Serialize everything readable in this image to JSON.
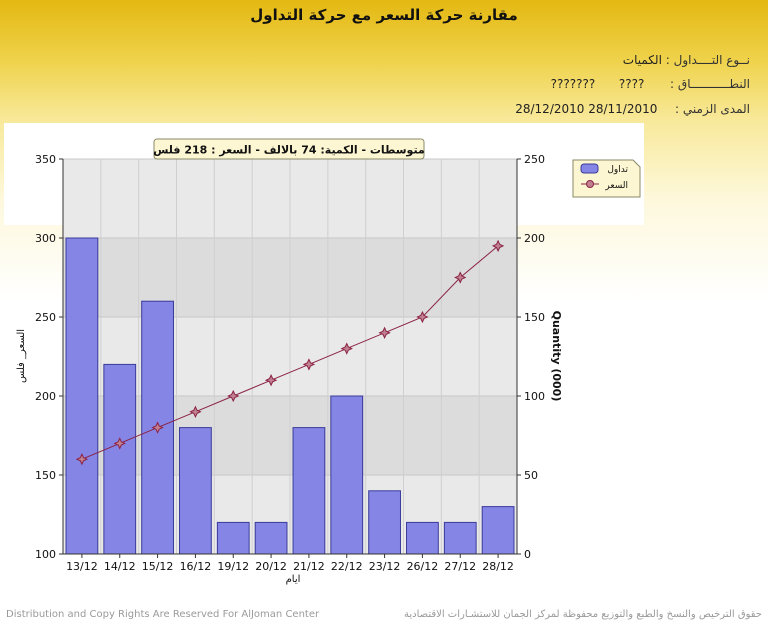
{
  "title": "مقارنة حركة السعر مع حركة التداول",
  "meta": {
    "type_label": "نــوع التــــداول :",
    "type_value": "الكميات",
    "range_label": "النطـــــــــــاق :",
    "range_value1": "????",
    "range_value2": "???????",
    "period_label": "المدى الزمني :",
    "period_value": "28/12/2010 28/11/2010"
  },
  "averages_box": "متوسطات - الكمية: 74 بالالف   - السعر : 218 فلس",
  "colors": {
    "bar_fill": "#8585e6",
    "bar_stroke": "#3a3a9a",
    "line": "#8a2244",
    "marker": "#c08090",
    "plot_bg": "#e6e6e6"
  },
  "chart_data": {
    "type": "bar+line",
    "categories": [
      "13/12",
      "14/12",
      "15/12",
      "16/12",
      "19/12",
      "20/12",
      "21/12",
      "22/12",
      "23/12",
      "26/12",
      "27/12",
      "28/12"
    ],
    "series": [
      {
        "name": "تداول",
        "type": "bar",
        "axis": "right",
        "values": [
          200,
          120,
          160,
          80,
          20,
          20,
          80,
          100,
          40,
          20,
          20,
          30
        ]
      },
      {
        "name": "السعر",
        "type": "line",
        "axis": "left",
        "values": [
          160,
          170,
          180,
          190,
          200,
          210,
          220,
          230,
          240,
          250,
          275,
          295
        ]
      }
    ],
    "xlabel": "ايام",
    "ylabel_left": "السعر_ فلس",
    "ylabel_right": "Quantity (000)",
    "ylim_left": [
      100,
      350
    ],
    "ylim_right": [
      0,
      250
    ],
    "yticks_left": [
      100,
      150,
      200,
      250,
      300,
      350
    ],
    "yticks_right": [
      0,
      50,
      100,
      150,
      200,
      250
    ],
    "grid": true,
    "legend_position": "top-right"
  },
  "footer": {
    "left": "Distribution and Copy Rights Are Reserved For AlJoman Center",
    "right": "حقوق الترخيص والنسخ والطبع والتوزيع محفوظة لمركز الجمان للاستشـارات الاقتصادية"
  }
}
